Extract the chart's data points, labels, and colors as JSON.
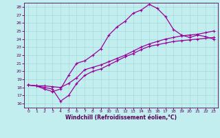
{
  "xlabel": "Windchill (Refroidissement éolien,°C)",
  "xlim": [
    -0.5,
    23.5
  ],
  "ylim": [
    15.5,
    28.5
  ],
  "xticks": [
    0,
    1,
    2,
    3,
    4,
    5,
    6,
    7,
    8,
    9,
    10,
    11,
    12,
    13,
    14,
    15,
    16,
    17,
    18,
    19,
    20,
    21,
    22,
    23
  ],
  "yticks": [
    16,
    17,
    18,
    19,
    20,
    21,
    22,
    23,
    24,
    25,
    26,
    27,
    28
  ],
  "bg_color": "#c2eef0",
  "line_color": "#990099",
  "grid_color": "#aadddd",
  "curve1_x": [
    0,
    1,
    2,
    3,
    4,
    5,
    6,
    7,
    8,
    9,
    10,
    11,
    12,
    13,
    14,
    15,
    16,
    17,
    18,
    19,
    20,
    21,
    22,
    23
  ],
  "curve1_y": [
    18.3,
    18.2,
    17.8,
    17.5,
    17.8,
    19.5,
    21.0,
    21.3,
    22.0,
    22.8,
    24.5,
    25.5,
    26.2,
    27.2,
    27.6,
    28.3,
    27.8,
    26.8,
    25.2,
    24.5,
    24.2,
    24.5,
    24.3,
    24.0
  ],
  "curve2_x": [
    0,
    1,
    2,
    3,
    4,
    5,
    6,
    7,
    8,
    9,
    10,
    11,
    12,
    13,
    14,
    15,
    16,
    17,
    18,
    19,
    20,
    21,
    22,
    23
  ],
  "curve2_y": [
    18.3,
    18.2,
    18.2,
    18.1,
    18.0,
    18.5,
    19.2,
    20.2,
    20.5,
    20.8,
    21.2,
    21.6,
    22.0,
    22.5,
    23.0,
    23.4,
    23.7,
    24.0,
    24.2,
    24.4,
    24.5,
    24.6,
    24.8,
    25.0
  ],
  "curve3_x": [
    0,
    1,
    2,
    3,
    4,
    5,
    6,
    7,
    8,
    9,
    10,
    11,
    12,
    13,
    14,
    15,
    16,
    17,
    18,
    19,
    20,
    21,
    22,
    23
  ],
  "curve3_y": [
    18.3,
    18.2,
    18.0,
    17.8,
    16.3,
    17.0,
    18.5,
    19.5,
    20.0,
    20.3,
    20.8,
    21.3,
    21.8,
    22.2,
    22.7,
    23.1,
    23.3,
    23.5,
    23.7,
    23.8,
    23.9,
    24.0,
    24.1,
    24.2
  ]
}
